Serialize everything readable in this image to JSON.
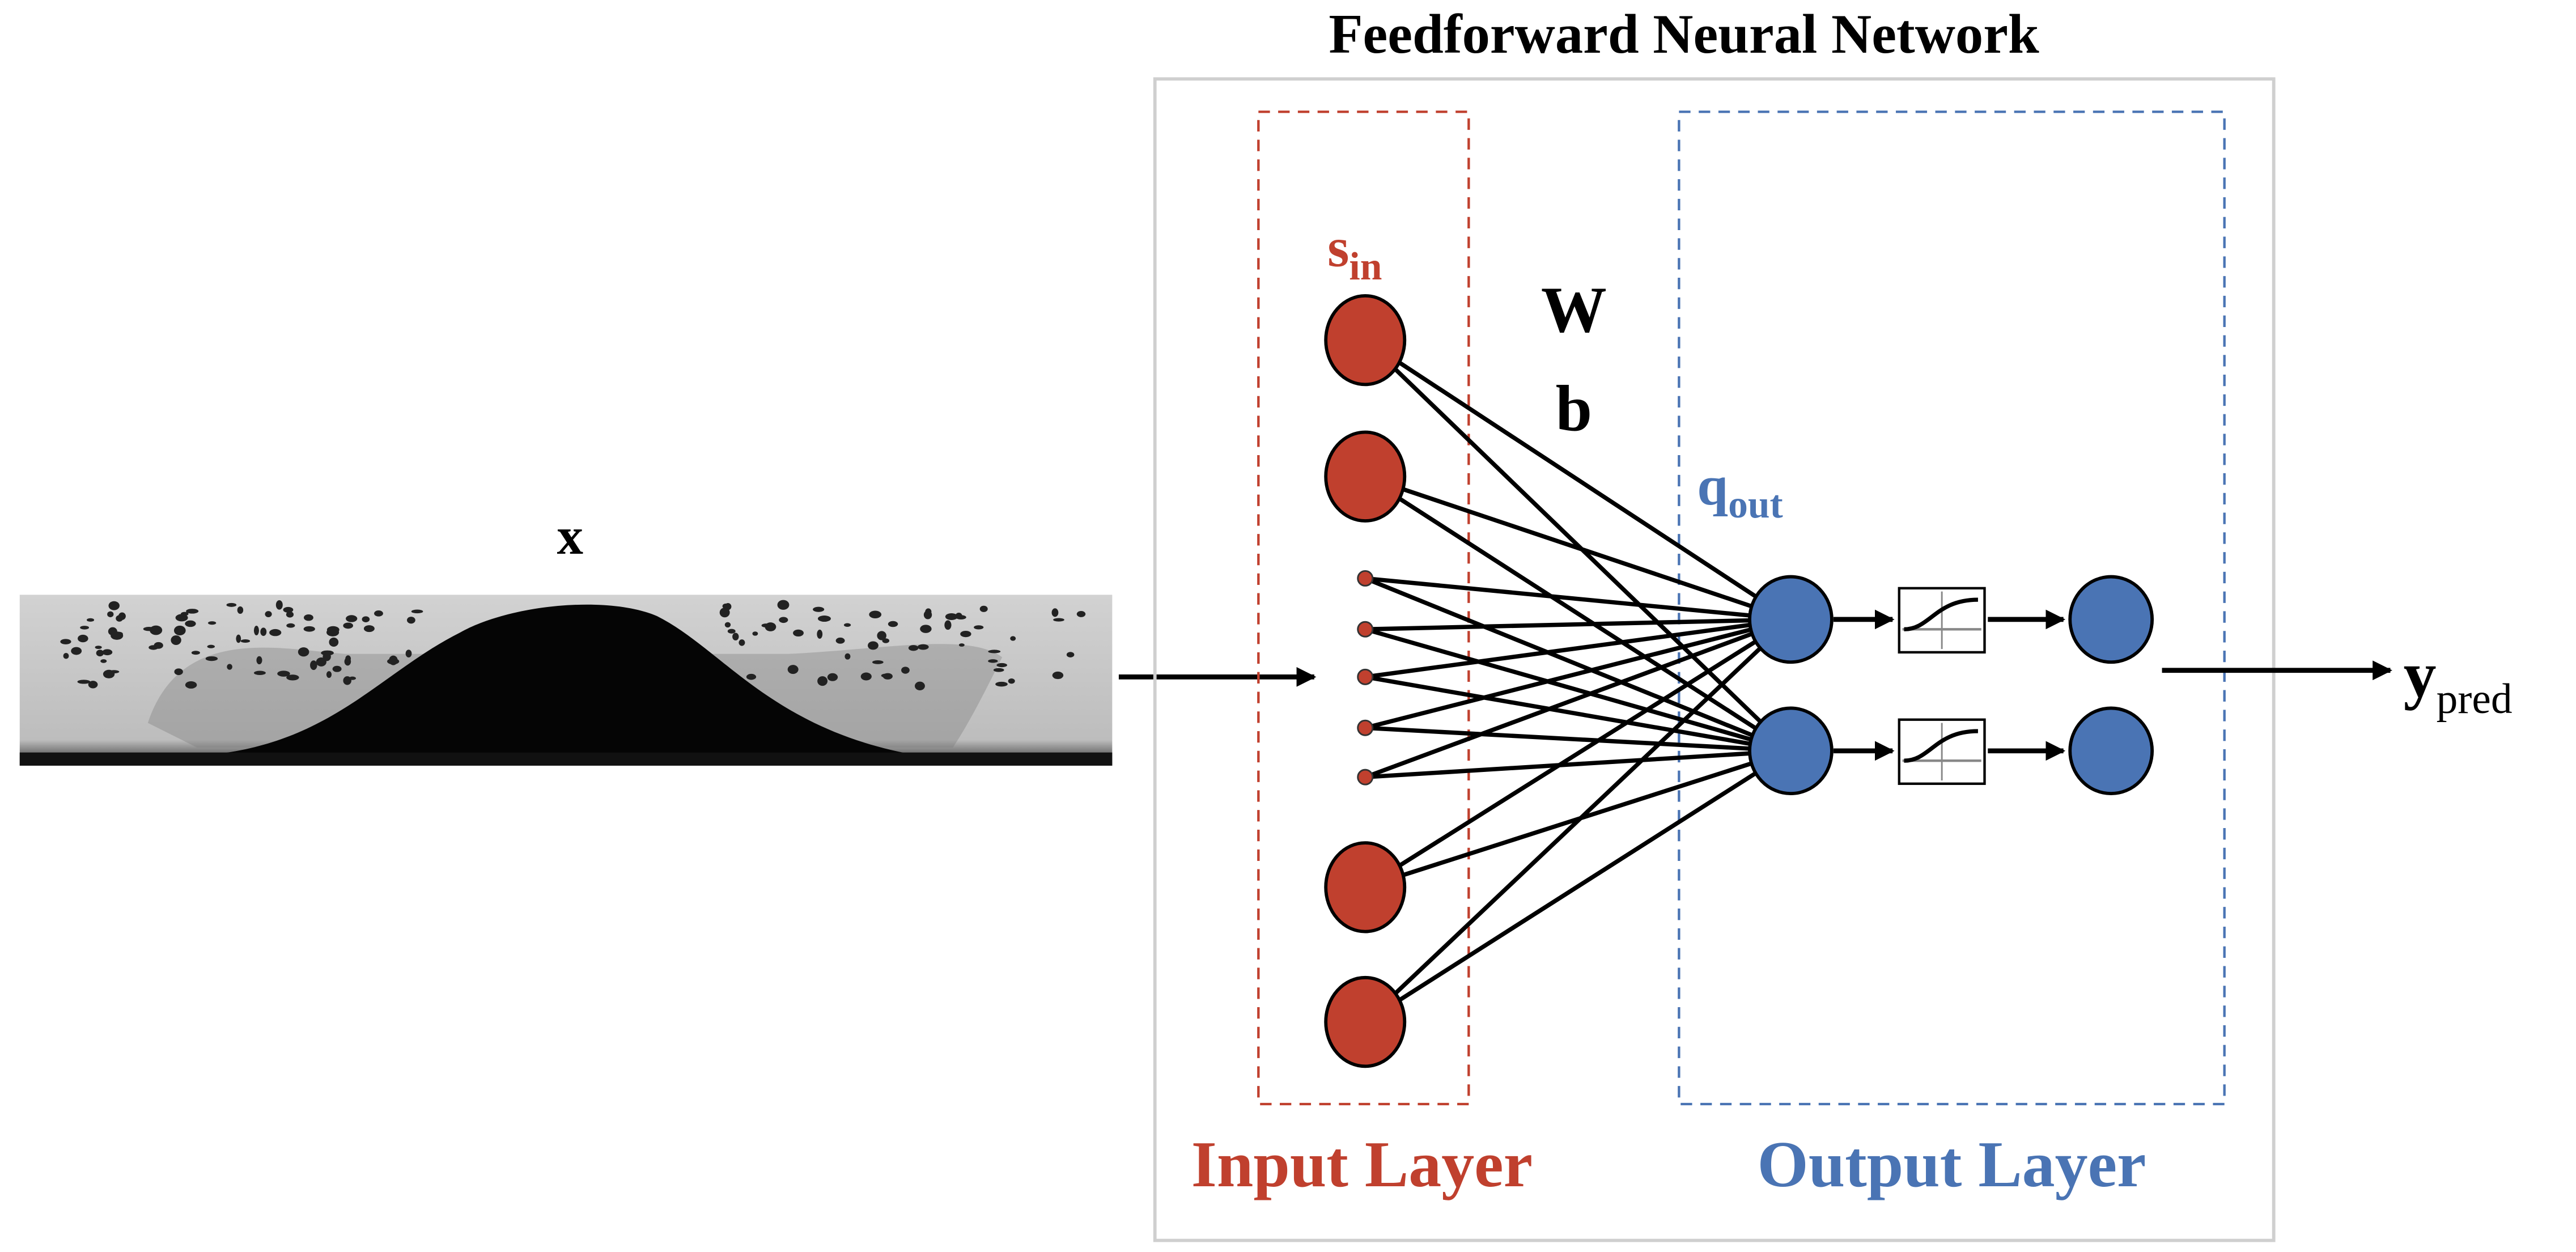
{
  "title": "Feedforward Neural Network",
  "input_label": "x",
  "input_layer": {
    "label": "Input Layer",
    "symbol": "s",
    "symbol_sub": "in",
    "large_nodes": 4,
    "small_nodes": 5
  },
  "weights": {
    "w_label": "W",
    "b_label": "b"
  },
  "output_layer": {
    "label": "Output Layer",
    "symbol": "q",
    "symbol_sub": "out",
    "nodes": 2,
    "activation_icon": "sigmoid-icon"
  },
  "output_label": {
    "symbol": "y",
    "sub": "pred"
  },
  "colors": {
    "input": "#C0402E",
    "output": "#4A74B4",
    "frame": "#CFCFCF"
  }
}
